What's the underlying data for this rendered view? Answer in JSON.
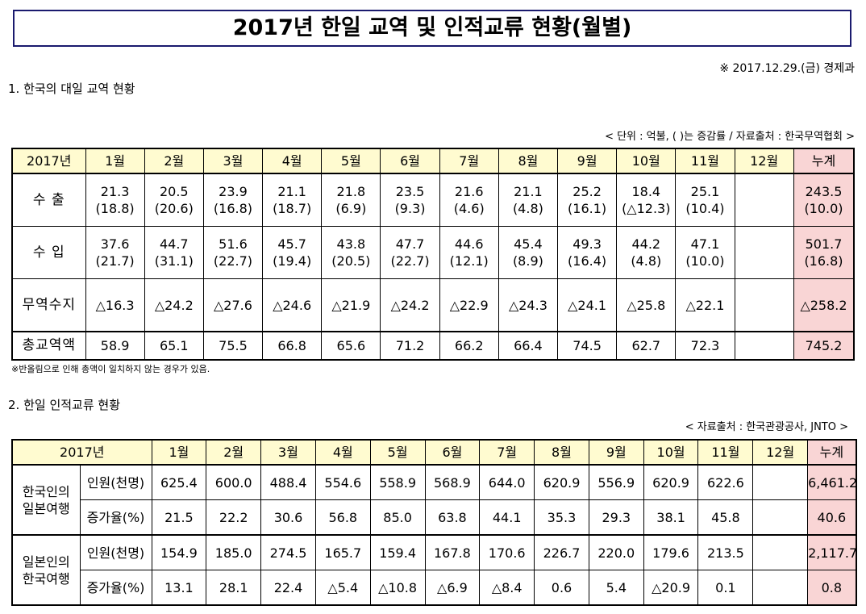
{
  "title": "2017년 한일 교역 및 인적교류 현황(월별)",
  "date_dept": "※ 2017.12.29.(금) 경제과",
  "section1": {
    "heading": "1. 한국의 대일 교역 현황",
    "unit_note": "< 단위 : 억불, ( )는 증감률 / 자료출처 : 한국무역협회 >",
    "header": [
      "2017년",
      "1월",
      "2월",
      "3월",
      "4월",
      "5월",
      "6월",
      "7월",
      "8월",
      "9월",
      "10월",
      "11월",
      "12월",
      "누계"
    ],
    "rows": [
      {
        "label": "수  출",
        "values": [
          "21.3",
          "20.5",
          "23.9",
          "21.1",
          "21.8",
          "23.5",
          "21.6",
          "21.1",
          "25.2",
          "18.4",
          "25.1",
          "",
          "243.5"
        ],
        "sub": [
          "(18.8)",
          "(20.6)",
          "(16.8)",
          "(18.7)",
          "(6.9)",
          "(9.3)",
          "(4.6)",
          "(4.8)",
          "(16.1)",
          "(△12.3)",
          "(10.4)",
          "",
          "(10.0)"
        ]
      },
      {
        "label": "수  입",
        "values": [
          "37.6",
          "44.7",
          "51.6",
          "45.7",
          "43.8",
          "47.7",
          "44.6",
          "45.4",
          "49.3",
          "44.2",
          "47.1",
          "",
          "501.7"
        ],
        "sub": [
          "(21.7)",
          "(31.1)",
          "(22.7)",
          "(19.4)",
          "(20.5)",
          "(22.7)",
          "(12.1)",
          "(8.9)",
          "(16.4)",
          "(4.8)",
          "(10.0)",
          "",
          "(16.8)"
        ]
      }
    ],
    "balance": {
      "label": "무역수지",
      "values": [
        "△16.3",
        "△24.2",
        "△27.6",
        "△24.6",
        "△21.9",
        "△24.2",
        "△22.9",
        "△24.3",
        "△24.1",
        "△25.8",
        "△22.1",
        "",
        "△258.2"
      ]
    },
    "total": {
      "label": "총교역액",
      "values": [
        "58.9",
        "65.1",
        "75.5",
        "66.8",
        "65.6",
        "71.2",
        "66.2",
        "66.4",
        "74.5",
        "62.7",
        "72.3",
        "",
        "745.2"
      ]
    },
    "footnote": "※반올림으로 인해 총액이 일치하지 않는 경우가 있음."
  },
  "section2": {
    "heading": "2. 한일 인적교류 현황",
    "source_note": "< 자료출처 : 한국관광공사, JNTO >",
    "header": [
      "2017년",
      "1월",
      "2월",
      "3월",
      "4월",
      "5월",
      "6월",
      "7월",
      "8월",
      "9월",
      "10월",
      "11월",
      "12월",
      "누계"
    ],
    "groups": [
      {
        "label_line1": "한국인의",
        "label_line2": "일본여행",
        "rows": [
          {
            "label": "인원(천명)",
            "values": [
              "625.4",
              "600.0",
              "488.4",
              "554.6",
              "558.9",
              "568.9",
              "644.0",
              "620.9",
              "556.9",
              "620.9",
              "622.6",
              "",
              "6,461.2"
            ]
          },
          {
            "label": "증가율(%)",
            "values": [
              "21.5",
              "22.2",
              "30.6",
              "56.8",
              "85.0",
              "63.8",
              "44.1",
              "35.3",
              "29.3",
              "38.1",
              "45.8",
              "",
              "40.6"
            ]
          }
        ]
      },
      {
        "label_line1": "일본인의",
        "label_line2": "한국여행",
        "rows": [
          {
            "label": "인원(천명)",
            "values": [
              "154.9",
              "185.0",
              "274.5",
              "165.7",
              "159.4",
              "167.8",
              "170.6",
              "226.7",
              "220.0",
              "179.6",
              "213.5",
              "",
              "2,117.7"
            ]
          },
          {
            "label": "증가율(%)",
            "values": [
              "13.1",
              "28.1",
              "22.4",
              "△5.4",
              "△10.8",
              "△6.9",
              "△8.4",
              "0.6",
              "5.4",
              "△20.9",
              "0.1",
              "",
              "0.8"
            ]
          }
        ]
      }
    ]
  }
}
